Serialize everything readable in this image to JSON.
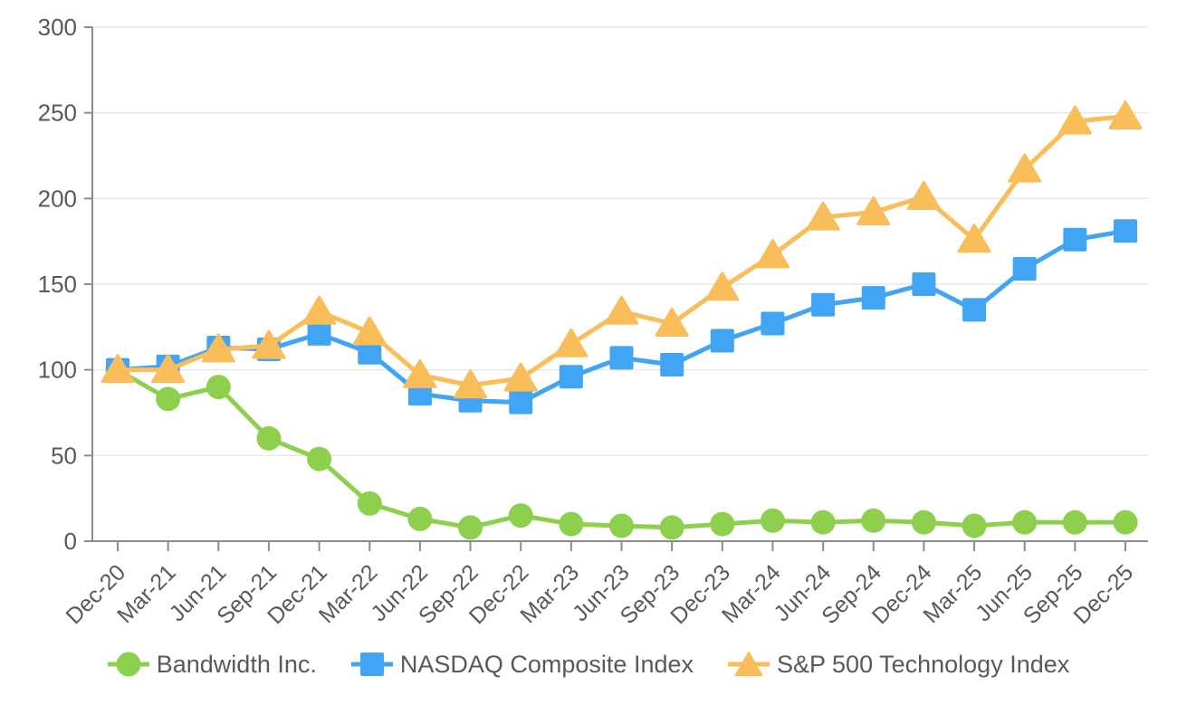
{
  "chart_data": {
    "type": "line",
    "title": "",
    "xlabel": "",
    "ylabel": "",
    "categories": [
      "Dec-20",
      "Mar-21",
      "Jun-21",
      "Sep-21",
      "Dec-21",
      "Mar-22",
      "Jun-22",
      "Sep-22",
      "Dec-22",
      "Mar-23",
      "Jun-23",
      "Sep-23",
      "Dec-23",
      "Mar-24",
      "Jun-24",
      "Sep-24",
      "Dec-24",
      "Mar-25",
      "Jun-25",
      "Sep-25",
      "Dec-25"
    ],
    "series": [
      {
        "name": "Bandwidth Inc.",
        "marker": "circle",
        "color": "#8DD04D",
        "values": [
          100,
          83,
          90,
          60,
          48,
          22,
          13,
          8,
          15,
          10,
          9,
          8,
          10,
          12,
          11,
          12,
          11,
          9,
          11,
          11,
          11
        ]
      },
      {
        "name": "NASDAQ Composite Index",
        "marker": "square",
        "color": "#42A4F5",
        "values": [
          100,
          102,
          113,
          112,
          121,
          110,
          86,
          82,
          81,
          96,
          107,
          103,
          117,
          127,
          138,
          142,
          150,
          135,
          159,
          176,
          181
        ]
      },
      {
        "name": "S&P 500 Technology Index",
        "marker": "triangle",
        "color": "#F9BD59",
        "values": [
          100,
          100,
          112,
          114,
          134,
          122,
          97,
          91,
          95,
          115,
          134,
          127,
          148,
          167,
          189,
          192,
          201,
          176,
          217,
          245,
          248
        ]
      }
    ],
    "ylim": [
      0,
      300
    ],
    "yticks": [
      0,
      50,
      100,
      150,
      200,
      250,
      300
    ],
    "grid": "horizontal",
    "legend_position": "bottom",
    "colors": {
      "axis": "#8c8c8c",
      "gridline": "#e7e7e7",
      "label_text": "#595959",
      "background": "#ffffff"
    }
  }
}
